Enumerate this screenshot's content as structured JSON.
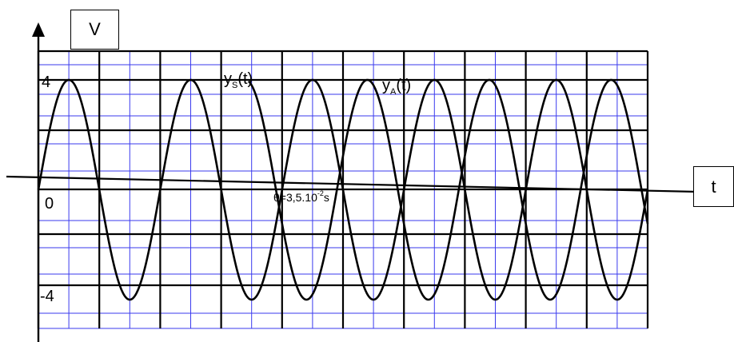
{
  "chart_data": {
    "type": "line",
    "ylabel": "V",
    "xlabel": "t",
    "y_ticks": [
      "4",
      "0",
      "-4"
    ],
    "ylim": [
      -4,
      4
    ],
    "series": [
      {
        "name": "y",
        "name_sub": "S",
        "name_suffix": "(t)",
        "amplitude": 4,
        "period_div": 2,
        "phase_div": 0,
        "start_div": 0,
        "end_div": 10
      },
      {
        "name": "y",
        "name_sub": "A",
        "name_suffix": "(t)",
        "amplitude": 4,
        "period_div": 2,
        "phase_div": 0.9,
        "start_div": 3.45,
        "end_div": 10
      }
    ],
    "annotation": {
      "prefix": "θ=3,5.10",
      "exponent": "-2",
      "suffix": "s"
    },
    "grid": true
  }
}
